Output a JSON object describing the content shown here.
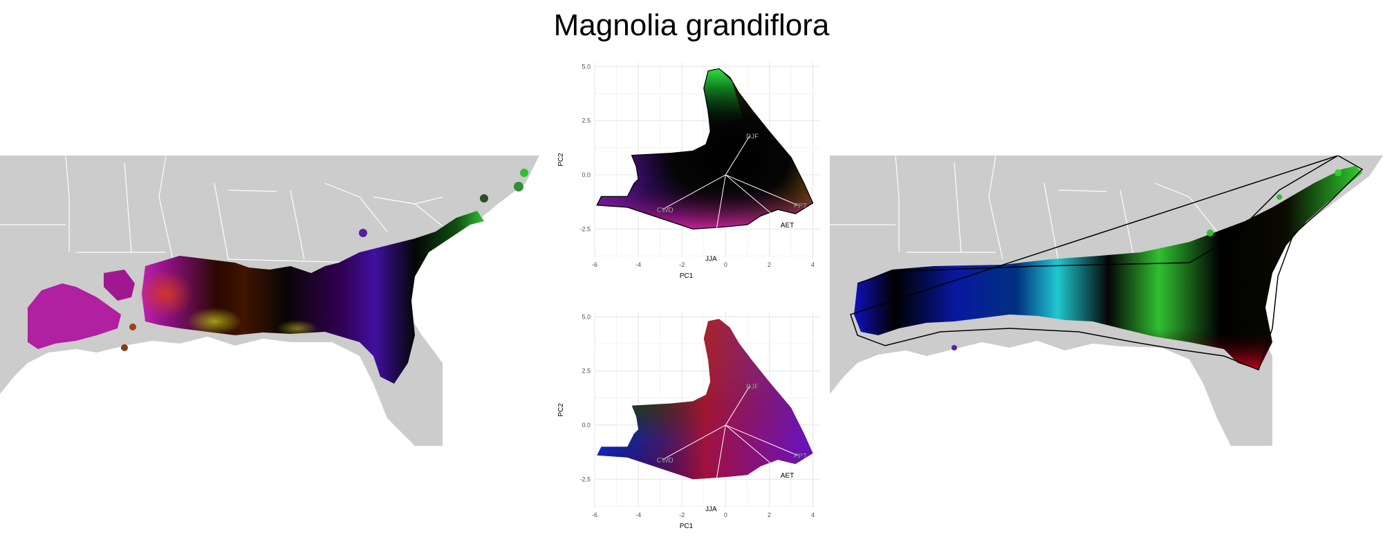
{
  "title": "Magnolia grandiflora",
  "colors": {
    "land": "#cccccc",
    "border": "#ffffff",
    "grid": "#ebebeb",
    "vector": "#ffffff",
    "outline": "#000000"
  },
  "chart_data": [
    {
      "type": "scatter",
      "panel": "pca-top",
      "title": "",
      "xlabel": "PC1",
      "ylabel": "PC2",
      "xlim": [
        -6,
        4.3
      ],
      "ylim": [
        -3.8,
        5.2
      ],
      "xticks": [
        -6,
        -4,
        -2,
        0,
        2,
        4
      ],
      "yticks": [
        -2.5,
        0.0,
        2.5,
        5.0
      ],
      "ytick_labels": [
        "-2.5",
        "0.0",
        "2.5",
        "5.0"
      ],
      "grid": true,
      "vectors": [
        {
          "label": "DJF",
          "x": 1.1,
          "y": 1.8
        },
        {
          "label": "PPT",
          "x": 3.3,
          "y": -1.4
        },
        {
          "label": "AET",
          "x": 2.7,
          "y": -2.3
        },
        {
          "label": "CWD",
          "x": -2.9,
          "y": -1.6
        },
        {
          "label": "JJA",
          "x": -0.6,
          "y": -3.6
        }
      ]
    },
    {
      "type": "scatter",
      "panel": "pca-bottom",
      "title": "",
      "xlabel": "PC1",
      "ylabel": "PC2",
      "xlim": [
        -6,
        4.3
      ],
      "ylim": [
        -3.8,
        5.2
      ],
      "xticks": [
        -6,
        -4,
        -2,
        0,
        2,
        4
      ],
      "yticks": [
        -2.5,
        0.0,
        2.5,
        5.0
      ],
      "ytick_labels": [
        "-2.5",
        "0.0",
        "2.5",
        "5.0"
      ],
      "grid": true,
      "vectors": [
        {
          "label": "DJF",
          "x": 1.1,
          "y": 1.8
        },
        {
          "label": "PPT",
          "x": 3.3,
          "y": -1.4
        },
        {
          "label": "AET",
          "x": 2.7,
          "y": -2.3
        },
        {
          "label": "CWD",
          "x": -2.9,
          "y": -1.6
        },
        {
          "label": "JJA",
          "x": -0.6,
          "y": -3.6
        }
      ]
    }
  ]
}
